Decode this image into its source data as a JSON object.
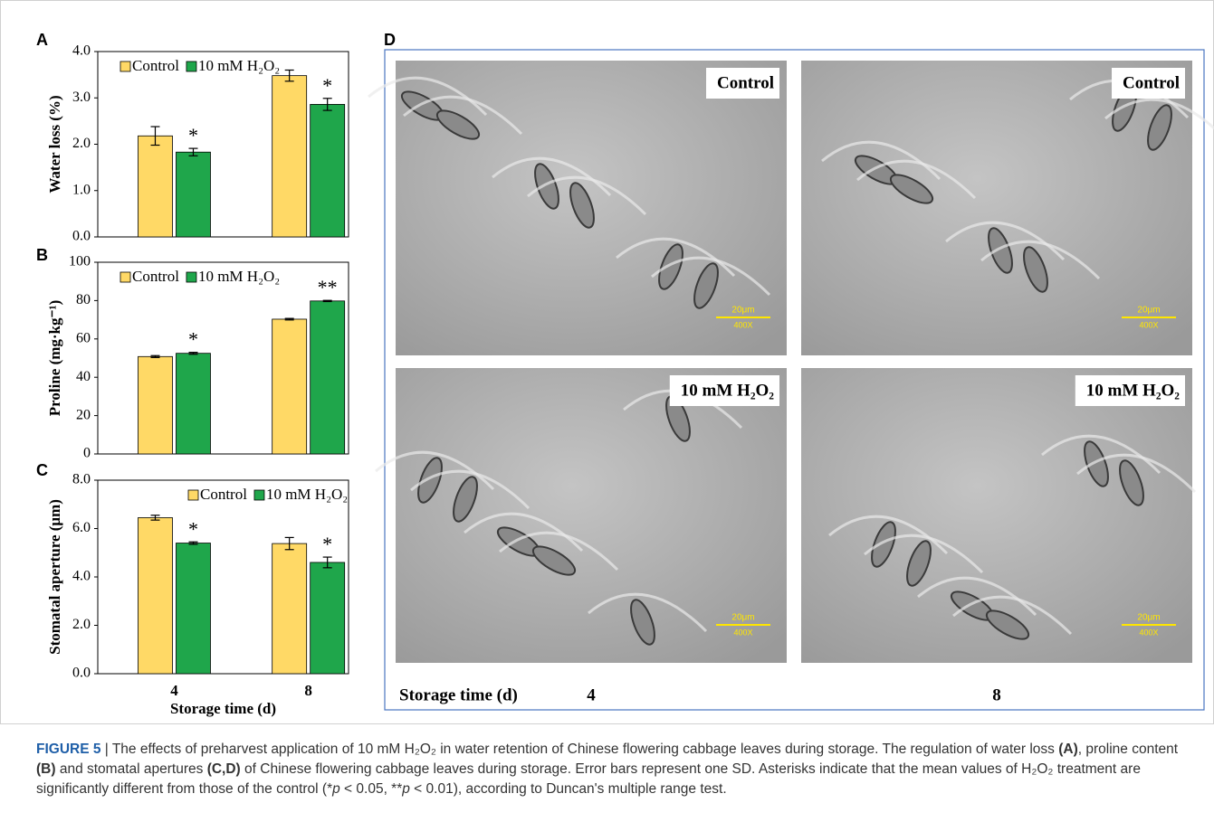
{
  "chart_data": [
    {
      "type": "bar",
      "panel": "A",
      "y_label": "Water loss (%)",
      "series": [
        {
          "name": "Control",
          "color": "#ffd966",
          "values": [
            2.18,
            3.48
          ],
          "errors": [
            0.2,
            0.12
          ]
        },
        {
          "name": "10 mM H₂O₂",
          "color": "#1fa64b",
          "values": [
            1.83,
            2.86
          ],
          "errors": [
            0.08,
            0.13
          ],
          "significance": [
            "*",
            "*"
          ]
        }
      ],
      "ylim": [
        0,
        4
      ],
      "yticks": [
        {
          "value": 0,
          "label": "0.0"
        },
        {
          "value": 1,
          "label": "1.0"
        },
        {
          "value": 2,
          "label": "2.0"
        },
        {
          "value": 3,
          "label": "3.0"
        },
        {
          "value": 4,
          "label": "4.0"
        }
      ],
      "legend": "top-left"
    },
    {
      "type": "bar",
      "panel": "B",
      "y_label": "Proline (mg·kg⁻¹)",
      "series": [
        {
          "name": "Control",
          "color": "#ffd966",
          "values": [
            50.8,
            70.3
          ],
          "errors": [
            0.5,
            0.4
          ]
        },
        {
          "name": "10 mM H₂O₂",
          "color": "#1fa64b",
          "values": [
            52.5,
            79.8
          ],
          "errors": [
            0.5,
            0.3
          ],
          "significance": [
            "*",
            "**"
          ]
        }
      ],
      "ylim": [
        0,
        100
      ],
      "yticks": [
        0,
        20,
        40,
        60,
        80,
        100
      ],
      "legend": "top-left"
    },
    {
      "type": "bar",
      "panel": "C",
      "y_label": "Stomatal aperture (μm)",
      "x_label": "Storage time (d)",
      "categories": [
        "4",
        "8"
      ],
      "series": [
        {
          "name": "Control",
          "color": "#ffd966",
          "values": [
            6.45,
            5.38
          ],
          "errors": [
            0.1,
            0.25
          ]
        },
        {
          "name": "10 mM H₂O₂",
          "color": "#1fa64b",
          "values": [
            5.4,
            4.6
          ],
          "errors": [
            0.05,
            0.22
          ],
          "significance": [
            "*",
            "*"
          ]
        }
      ],
      "ylim": [
        0,
        8
      ],
      "yticks": [
        {
          "value": 0,
          "label": "0.0"
        },
        {
          "value": 2,
          "label": "2.0"
        },
        {
          "value": 4,
          "label": "4.0"
        },
        {
          "value": 6,
          "label": "6.0"
        },
        {
          "value": 8,
          "label": "8.0"
        }
      ],
      "legend": "top-right"
    }
  ],
  "panel_d": {
    "panel": "D",
    "images": [
      {
        "label": "Control"
      },
      {
        "label": "Control"
      },
      {
        "label": "10 mM H₂O₂"
      },
      {
        "label": "10 mM H₂O₂"
      }
    ],
    "scale_bar": "20μm",
    "magnification": "400X",
    "x_label": "Storage time (d)",
    "columns": [
      "4",
      "8"
    ]
  },
  "caption": [
    {
      "text": "FIGURE 5",
      "bold": true
    },
    {
      "text": " | The effects of preharvest application of 10 mM H₂O₂ in water retention of Chinese flowering cabbage leaves during storage. The regulation of water loss "
    },
    {
      "text": "(A)",
      "bold": true
    },
    {
      "text": ", proline content "
    },
    {
      "text": "(B)",
      "bold": true
    },
    {
      "text": " and stomatal apertures "
    },
    {
      "text": "(C,D)",
      "bold": true
    },
    {
      "text": " of Chinese flowering cabbage leaves during storage. Error bars represent one SD. Asterisks indicate that the mean values of H₂O₂ treatment are significantly different from those of the control (*"
    },
    {
      "text": "p",
      "italic": true
    },
    {
      "text": " < 0.05, **"
    },
    {
      "text": "p",
      "italic": true
    },
    {
      "text": " < 0.01), according to Duncan's multiple range test."
    }
  ]
}
